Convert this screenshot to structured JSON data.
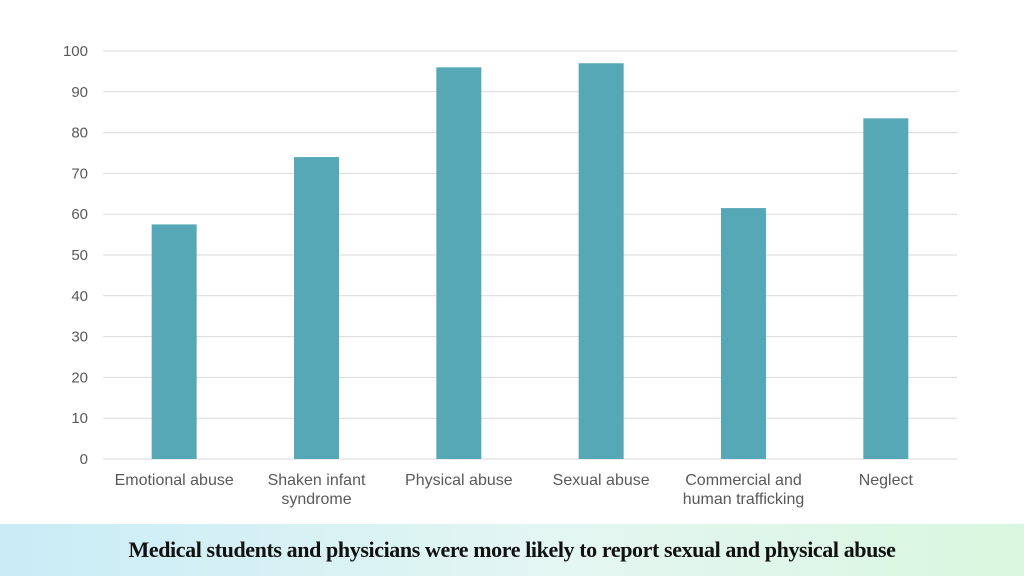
{
  "chart_data": {
    "type": "bar",
    "categories": [
      "Emotional abuse",
      "Shaken infant syndrome",
      "Physical abuse",
      "Sexual abuse",
      "Commercial and human trafficking",
      "Neglect"
    ],
    "category_lines": [
      [
        "Emotional abuse"
      ],
      [
        "Shaken infant",
        "syndrome"
      ],
      [
        "Physical abuse"
      ],
      [
        "Sexual abuse"
      ],
      [
        "Commercial and",
        "human trafficking"
      ],
      [
        "Neglect"
      ]
    ],
    "values": [
      57.5,
      74,
      96,
      97,
      61.5,
      83.5
    ],
    "ylim": [
      0,
      100
    ],
    "yticks": [
      0,
      10,
      20,
      30,
      40,
      50,
      60,
      70,
      80,
      90,
      100
    ],
    "grid": true,
    "legend": "none",
    "bar_color": "#56a8b7",
    "grid_color": "#d9d9d9",
    "title": "",
    "xlabel": "",
    "ylabel": ""
  },
  "caption": {
    "text": "Medical students and physicians were more likely to report sexual and physical abuse"
  }
}
